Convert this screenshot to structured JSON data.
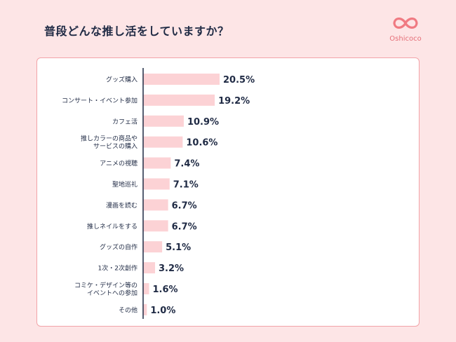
{
  "title": "普段どんな推し活をしていますか？",
  "logo": {
    "text": "Oshicoco",
    "color": "#f07a82"
  },
  "colors": {
    "bar": "#fcd2d5",
    "axis": "#1f2a44",
    "label": "#1f2a44",
    "value": "#1f2a44"
  },
  "chart_data": {
    "type": "bar",
    "orientation": "horizontal",
    "categories": [
      [
        "グッズ購入"
      ],
      [
        "コンサート・イベント参加"
      ],
      [
        "カフェ活"
      ],
      [
        "推しカラーの商品や",
        "サービスの購入"
      ],
      [
        "アニメの視聴"
      ],
      [
        "聖地巡礼"
      ],
      [
        "漫画を読む"
      ],
      [
        "推しネイルをする"
      ],
      [
        "グッズの自作"
      ],
      [
        "1次・2次創作"
      ],
      [
        "コミケ・デザイン等の",
        "イベントへの参加"
      ],
      [
        "その他"
      ]
    ],
    "values": [
      20.5,
      19.2,
      10.9,
      10.6,
      7.4,
      7.1,
      6.7,
      6.7,
      5.1,
      3.2,
      1.6,
      1.0
    ],
    "value_labels": [
      "20.5%",
      "19.2%",
      "10.9%",
      "10.6%",
      "7.4%",
      "7.1%",
      "6.7%",
      "6.7%",
      "5.1%",
      "3.2%",
      "1.6%",
      "1.0%"
    ],
    "unit": "%",
    "xlim": [
      0,
      20.5
    ],
    "grid": false
  }
}
